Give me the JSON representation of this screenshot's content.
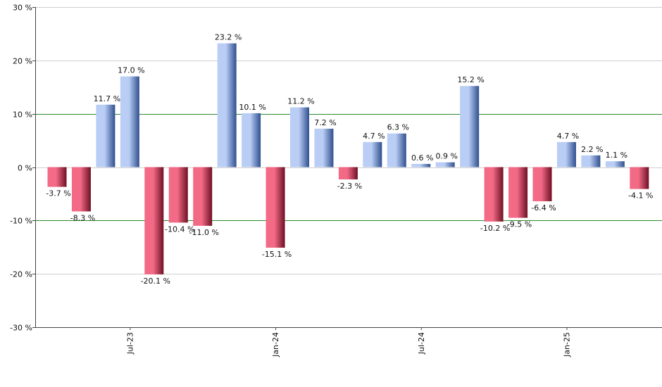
{
  "chart_data": {
    "type": "bar",
    "title": "",
    "xlabel": "",
    "ylabel": "",
    "ylim": [
      -30,
      30
    ],
    "y_ticks": [
      30,
      20,
      10,
      0,
      -10,
      -20,
      -30
    ],
    "y_tick_labels": [
      "30 %",
      "20 %",
      "10 %",
      "0 %",
      "-10 %",
      "-20 %",
      "-30 %"
    ],
    "x_tick_labels": [
      {
        "label": "Jul-23",
        "category_index": 3
      },
      {
        "label": "Jan-24",
        "category_index": 9
      },
      {
        "label": "Jul-24",
        "category_index": 15
      },
      {
        "label": "Jan-25",
        "category_index": 21
      }
    ],
    "values": [
      -3.7,
      -8.3,
      11.7,
      17.0,
      -20.1,
      -10.4,
      -11.0,
      23.2,
      10.1,
      -15.1,
      11.2,
      7.2,
      -2.3,
      4.7,
      6.3,
      0.6,
      0.9,
      15.2,
      -10.2,
      -9.5,
      -6.4,
      4.7,
      2.2,
      1.1,
      -4.1
    ],
    "value_labels": [
      "-3.7 %",
      "-8.3 %",
      "11.7 %",
      "17.0 %",
      "-20.1 %",
      "-10.4 %",
      "-11.0 %",
      "23.2 %",
      "10.1 %",
      "-15.1 %",
      "11.2 %",
      "7.2 %",
      "-2.3 %",
      "4.7 %",
      "6.3 %",
      "0.6 %",
      "0.9 %",
      "15.2 %",
      "-10.2 %",
      "-9.5 %",
      "-6.4 %",
      "4.7 %",
      "2.2 %",
      "1.1 %",
      "-4.1 %"
    ],
    "reference_lines": [
      10,
      -10
    ],
    "grid": true,
    "legend": "none",
    "colors": {
      "positive_light": "#b9cdf5",
      "positive_dark": "#2f4f8f",
      "negative_light": "#f26a86",
      "negative_dark": "#6e1024",
      "reference_line": "#2e8b2e",
      "gridline": "#cfcfcf",
      "axis": "#444444"
    }
  }
}
